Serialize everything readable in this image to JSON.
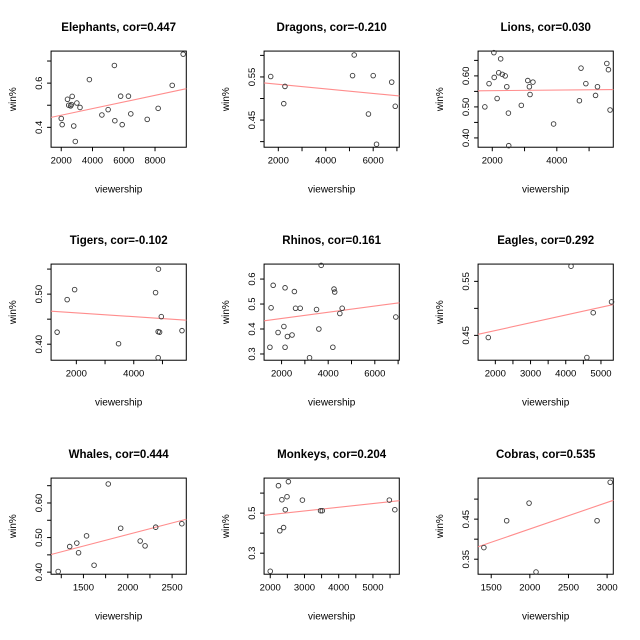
{
  "style": {
    "background": "#ffffff",
    "trend_color": "#ff8d8d",
    "point_color": "#3a3a3a",
    "axis_color": "#000000",
    "text_color": "#000000"
  },
  "chart_data": [
    {
      "type": "scatter",
      "name": "elephants",
      "title": "Elephants, cor=0.447",
      "xlabel": "viewership",
      "ylabel": "win%",
      "xlim": [
        1350,
        10000
      ],
      "ylim": [
        0.31,
        0.745
      ],
      "xticks": [
        {
          "v": 2000,
          "label": "2000"
        },
        {
          "v": 4000,
          "label": "4000"
        },
        {
          "v": 6000,
          "label": "6000"
        },
        {
          "v": 8000,
          "label": "8000"
        }
      ],
      "yticks": [
        {
          "v": 0.4,
          "label": "0.4"
        },
        {
          "v": 0.5,
          "label": ""
        },
        {
          "v": 0.6,
          "label": "0.6"
        },
        {
          "v": 0.7,
          "label": ""
        }
      ],
      "points": [
        [
          2000,
          0.44
        ],
        [
          2060,
          0.412
        ],
        [
          2400,
          0.527
        ],
        [
          2480,
          0.5
        ],
        [
          2600,
          0.497
        ],
        [
          2650,
          0.503
        ],
        [
          2700,
          0.54
        ],
        [
          2800,
          0.406
        ],
        [
          2900,
          0.336
        ],
        [
          3000,
          0.51
        ],
        [
          3200,
          0.49
        ],
        [
          3800,
          0.616
        ],
        [
          4600,
          0.456
        ],
        [
          5000,
          0.48
        ],
        [
          5400,
          0.68
        ],
        [
          5430,
          0.43
        ],
        [
          5800,
          0.541
        ],
        [
          5900,
          0.412
        ],
        [
          6300,
          0.541
        ],
        [
          6450,
          0.461
        ],
        [
          7500,
          0.436
        ],
        [
          8200,
          0.486
        ],
        [
          9100,
          0.59
        ],
        [
          9800,
          0.731
        ]
      ],
      "trendline": {
        "x1": 1350,
        "y1": 0.445,
        "x2": 10000,
        "y2": 0.575
      }
    },
    {
      "type": "scatter",
      "name": "dragons",
      "title": "Dragons, cor=-0.210",
      "xlabel": "viewership",
      "ylabel": "win%",
      "xlim": [
        1400,
        7100
      ],
      "ylim": [
        0.387,
        0.61
      ],
      "xticks": [
        {
          "v": 2000,
          "label": "2000"
        },
        {
          "v": 3000,
          "label": ""
        },
        {
          "v": 4000,
          "label": "4000"
        },
        {
          "v": 5000,
          "label": ""
        },
        {
          "v": 6000,
          "label": "6000"
        },
        {
          "v": 7000,
          "label": ""
        }
      ],
      "yticks": [
        {
          "v": 0.4,
          "label": ""
        },
        {
          "v": 0.45,
          "label": "0.45"
        },
        {
          "v": 0.5,
          "label": ""
        },
        {
          "v": 0.55,
          "label": "0.55"
        },
        {
          "v": 0.6,
          "label": ""
        }
      ],
      "points": [
        [
          1680,
          0.551
        ],
        [
          2230,
          0.488
        ],
        [
          2280,
          0.528
        ],
        [
          5130,
          0.553
        ],
        [
          5200,
          0.601
        ],
        [
          5800,
          0.464
        ],
        [
          6000,
          0.553
        ],
        [
          6140,
          0.394
        ],
        [
          6780,
          0.538
        ],
        [
          6930,
          0.482
        ]
      ],
      "trendline": {
        "x1": 1400,
        "y1": 0.536,
        "x2": 7100,
        "y2": 0.506
      }
    },
    {
      "type": "scatter",
      "name": "lions",
      "title": "Lions, cor=0.030",
      "xlabel": "viewership",
      "ylabel": "win%",
      "xlim": [
        1560,
        5750
      ],
      "ylim": [
        0.37,
        0.68
      ],
      "xticks": [
        {
          "v": 2000,
          "label": "2000"
        },
        {
          "v": 3000,
          "label": ""
        },
        {
          "v": 4000,
          "label": "4000"
        },
        {
          "v": 5000,
          "label": ""
        }
      ],
      "yticks": [
        {
          "v": 0.4,
          "label": "0.40"
        },
        {
          "v": 0.45,
          "label": ""
        },
        {
          "v": 0.5,
          "label": "0.50"
        },
        {
          "v": 0.55,
          "label": ""
        },
        {
          "v": 0.6,
          "label": "0.60"
        },
        {
          "v": 0.65,
          "label": ""
        }
      ],
      "points": [
        [
          1770,
          0.5
        ],
        [
          1900,
          0.575
        ],
        [
          2050,
          0.675
        ],
        [
          2060,
          0.595
        ],
        [
          2150,
          0.527
        ],
        [
          2200,
          0.61
        ],
        [
          2260,
          0.655
        ],
        [
          2310,
          0.605
        ],
        [
          2400,
          0.6
        ],
        [
          2450,
          0.565
        ],
        [
          2500,
          0.48
        ],
        [
          2510,
          0.375
        ],
        [
          2900,
          0.505
        ],
        [
          3100,
          0.585
        ],
        [
          3150,
          0.565
        ],
        [
          3170,
          0.54
        ],
        [
          3260,
          0.58
        ],
        [
          3900,
          0.445
        ],
        [
          4700,
          0.52
        ],
        [
          4750,
          0.625
        ],
        [
          4900,
          0.575
        ],
        [
          5200,
          0.537
        ],
        [
          5260,
          0.565
        ],
        [
          5550,
          0.64
        ],
        [
          5600,
          0.62
        ],
        [
          5650,
          0.49
        ]
      ],
      "trendline": {
        "x1": 1560,
        "y1": 0.552,
        "x2": 5750,
        "y2": 0.556
      }
    },
    {
      "type": "scatter",
      "name": "tigers",
      "title": "Tigers, cor=-0.102",
      "xlabel": "viewership",
      "ylabel": "win%",
      "xlim": [
        1120,
        5830
      ],
      "ylim": [
        0.368,
        0.56
      ],
      "xticks": [
        {
          "v": 2000,
          "label": "2000"
        },
        {
          "v": 3000,
          "label": ""
        },
        {
          "v": 4000,
          "label": "4000"
        },
        {
          "v": 5000,
          "label": ""
        }
      ],
      "yticks": [
        {
          "v": 0.4,
          "label": "0.40"
        },
        {
          "v": 0.45,
          "label": ""
        },
        {
          "v": 0.5,
          "label": "0.50"
        },
        {
          "v": 0.55,
          "label": ""
        }
      ],
      "points": [
        [
          1330,
          0.424
        ],
        [
          1680,
          0.489
        ],
        [
          1940,
          0.509
        ],
        [
          3470,
          0.401
        ],
        [
          4760,
          0.503
        ],
        [
          4850,
          0.373
        ],
        [
          4850,
          0.425
        ],
        [
          4900,
          0.424
        ],
        [
          4860,
          0.55
        ],
        [
          4960,
          0.455
        ],
        [
          5680,
          0.427
        ]
      ],
      "trendline": {
        "x1": 1120,
        "y1": 0.466,
        "x2": 5830,
        "y2": 0.448
      }
    },
    {
      "type": "scatter",
      "name": "rhinos",
      "title": "Rhinos, cor=0.161",
      "xlabel": "viewership",
      "ylabel": "win%",
      "xlim": [
        1250,
        7050
      ],
      "ylim": [
        0.275,
        0.66
      ],
      "xticks": [
        {
          "v": 2000,
          "label": "2000"
        },
        {
          "v": 3000,
          "label": ""
        },
        {
          "v": 4000,
          "label": "4000"
        },
        {
          "v": 5000,
          "label": ""
        },
        {
          "v": 6000,
          "label": "6000"
        },
        {
          "v": 7000,
          "label": ""
        }
      ],
      "yticks": [
        {
          "v": 0.3,
          "label": "0.3"
        },
        {
          "v": 0.4,
          "label": "0.4"
        },
        {
          "v": 0.5,
          "label": "0.5"
        },
        {
          "v": 0.6,
          "label": "0.6"
        }
      ],
      "points": [
        [
          1500,
          0.327
        ],
        [
          1550,
          0.485
        ],
        [
          1640,
          0.575
        ],
        [
          1850,
          0.386
        ],
        [
          2100,
          0.41
        ],
        [
          2150,
          0.565
        ],
        [
          2150,
          0.327
        ],
        [
          2250,
          0.37
        ],
        [
          2450,
          0.376
        ],
        [
          2550,
          0.55
        ],
        [
          2600,
          0.483
        ],
        [
          2800,
          0.483
        ],
        [
          3200,
          0.285
        ],
        [
          3500,
          0.478
        ],
        [
          3600,
          0.4
        ],
        [
          3700,
          0.655
        ],
        [
          4200,
          0.327
        ],
        [
          4250,
          0.56
        ],
        [
          4280,
          0.548
        ],
        [
          4500,
          0.462
        ],
        [
          4600,
          0.483
        ],
        [
          6900,
          0.448
        ]
      ],
      "trendline": {
        "x1": 1250,
        "y1": 0.433,
        "x2": 7050,
        "y2": 0.505
      }
    },
    {
      "type": "scatter",
      "name": "eagles",
      "title": "Eagles, cor=0.292",
      "xlabel": "viewership",
      "ylabel": "win%",
      "xlim": [
        1510,
        5350
      ],
      "ylim": [
        0.404,
        0.582
      ],
      "xticks": [
        {
          "v": 2000,
          "label": "2000"
        },
        {
          "v": 2500,
          "label": ""
        },
        {
          "v": 3000,
          "label": "3000"
        },
        {
          "v": 3500,
          "label": ""
        },
        {
          "v": 4000,
          "label": "4000"
        },
        {
          "v": 4500,
          "label": ""
        },
        {
          "v": 5000,
          "label": "5000"
        }
      ],
      "yticks": [
        {
          "v": 0.45,
          "label": "0.45"
        },
        {
          "v": 0.5,
          "label": ""
        },
        {
          "v": 0.55,
          "label": "0.55"
        }
      ],
      "points": [
        [
          1800,
          0.446
        ],
        [
          4150,
          0.578
        ],
        [
          4600,
          0.409
        ],
        [
          4780,
          0.492
        ],
        [
          5300,
          0.512
        ]
      ],
      "trendline": {
        "x1": 1510,
        "y1": 0.452,
        "x2": 5350,
        "y2": 0.507
      }
    },
    {
      "type": "scatter",
      "name": "whales",
      "title": "Whales, cor=0.444",
      "xlabel": "viewership",
      "ylabel": "win%",
      "xlim": [
        1135,
        2660
      ],
      "ylim": [
        0.394,
        0.672
      ],
      "xticks": [
        {
          "v": 1250,
          "label": ""
        },
        {
          "v": 1500,
          "label": "1500"
        },
        {
          "v": 1750,
          "label": ""
        },
        {
          "v": 2000,
          "label": "2000"
        },
        {
          "v": 2250,
          "label": ""
        },
        {
          "v": 2500,
          "label": "2500"
        }
      ],
      "yticks": [
        {
          "v": 0.4,
          "label": "0.40"
        },
        {
          "v": 0.45,
          "label": ""
        },
        {
          "v": 0.5,
          "label": "0.50"
        },
        {
          "v": 0.55,
          "label": ""
        },
        {
          "v": 0.6,
          "label": "0.60"
        },
        {
          "v": 0.65,
          "label": ""
        }
      ],
      "points": [
        [
          1215,
          0.402
        ],
        [
          1345,
          0.474
        ],
        [
          1425,
          0.484
        ],
        [
          1445,
          0.456
        ],
        [
          1535,
          0.505
        ],
        [
          1620,
          0.42
        ],
        [
          1780,
          0.655
        ],
        [
          1920,
          0.527
        ],
        [
          2140,
          0.49
        ],
        [
          2195,
          0.476
        ],
        [
          2315,
          0.53
        ],
        [
          2610,
          0.54
        ]
      ],
      "trendline": {
        "x1": 1135,
        "y1": 0.451,
        "x2": 2660,
        "y2": 0.553
      }
    },
    {
      "type": "scatter",
      "name": "monkeys",
      "title": "Monkeys, cor=0.204",
      "xlabel": "viewership",
      "ylabel": "win%",
      "xlim": [
        1820,
        5770
      ],
      "ylim": [
        0.195,
        0.675
      ],
      "xticks": [
        {
          "v": 2000,
          "label": "2000"
        },
        {
          "v": 2500,
          "label": ""
        },
        {
          "v": 3000,
          "label": "3000"
        },
        {
          "v": 3500,
          "label": ""
        },
        {
          "v": 4000,
          "label": "4000"
        },
        {
          "v": 4500,
          "label": ""
        },
        {
          "v": 5000,
          "label": "5000"
        },
        {
          "v": 5500,
          "label": ""
        }
      ],
      "yticks": [
        {
          "v": 0.3,
          "label": "0.3"
        },
        {
          "v": 0.4,
          "label": ""
        },
        {
          "v": 0.5,
          "label": "0.5"
        },
        {
          "v": 0.6,
          "label": ""
        }
      ],
      "points": [
        [
          2000,
          0.21
        ],
        [
          2240,
          0.637
        ],
        [
          2280,
          0.412
        ],
        [
          2340,
          0.567
        ],
        [
          2390,
          0.428
        ],
        [
          2440,
          0.517
        ],
        [
          2490,
          0.582
        ],
        [
          2530,
          0.657
        ],
        [
          2940,
          0.565
        ],
        [
          3470,
          0.512
        ],
        [
          3520,
          0.512
        ],
        [
          5480,
          0.565
        ],
        [
          5640,
          0.517
        ]
      ],
      "trendline": {
        "x1": 1820,
        "y1": 0.489,
        "x2": 5770,
        "y2": 0.562
      }
    },
    {
      "type": "scatter",
      "name": "cobras",
      "title": "Cobras, cor=0.535",
      "xlabel": "viewership",
      "ylabel": "win%",
      "xlim": [
        1330,
        3080
      ],
      "ylim": [
        0.3125,
        0.5525
      ],
      "xticks": [
        {
          "v": 1500,
          "label": "1500"
        },
        {
          "v": 2000,
          "label": "2000"
        },
        {
          "v": 2500,
          "label": "2500"
        },
        {
          "v": 3000,
          "label": "3000"
        }
      ],
      "yticks": [
        {
          "v": 0.35,
          "label": "0.35"
        },
        {
          "v": 0.4,
          "label": ""
        },
        {
          "v": 0.45,
          "label": "0.45"
        },
        {
          "v": 0.5,
          "label": ""
        }
      ],
      "points": [
        [
          1405,
          0.379
        ],
        [
          1700,
          0.446
        ],
        [
          1990,
          0.49
        ],
        [
          2080,
          0.318
        ],
        [
          2870,
          0.446
        ],
        [
          3040,
          0.542
        ]
      ],
      "trendline": {
        "x1": 1330,
        "y1": 0.381,
        "x2": 3080,
        "y2": 0.497
      }
    }
  ]
}
